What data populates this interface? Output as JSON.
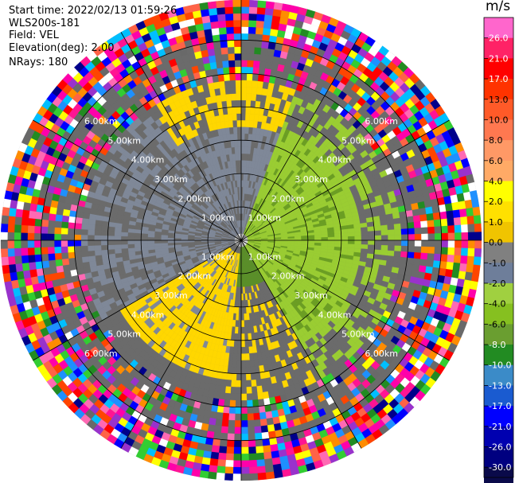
{
  "header": {
    "start_time": "Start time: 2022/02/13 01:59:26",
    "instrument": "WLS200s-181",
    "field": "Field: VEL",
    "elevation": "Elevation(deg): 2.00",
    "nrays": "NRays: 180"
  },
  "colorbar": {
    "unit": "m/s",
    "ticks": [
      "26.0",
      "21.0",
      "17.0",
      "13.0",
      "10.0",
      "8.0",
      "6.0",
      "4.0",
      "2.0",
      "1.0",
      "0.0",
      "-1.0",
      "-2.0",
      "-4.0",
      "-6.0",
      "-8.0",
      "-10.0",
      "-13.0",
      "-17.0",
      "-21.0",
      "-26.0",
      "-30.0"
    ],
    "colors": [
      "#ff66cc",
      "#ff2266",
      "#ff0000",
      "#ff3300",
      "#ff5a28",
      "#ff7850",
      "#ff9966",
      "#ffaa66",
      "#ffff00",
      "#ffe000",
      "#f0c400",
      "#808080",
      "#6e7e9a",
      "#a0d040",
      "#86c020",
      "#6a9e30",
      "#228b22",
      "#3b8bc8",
      "#1a5bd0",
      "#0000ff",
      "#0000b0",
      "#000080",
      "#0a0a4a"
    ]
  },
  "chart_data": {
    "type": "heatmap",
    "title": "",
    "field": "VEL",
    "units": "m/s",
    "elevation_deg": 2.0,
    "n_rays": 180,
    "range_rings_km": [
      1.0,
      2.0,
      3.0,
      4.0,
      5.0,
      6.0
    ],
    "range_labels": [
      "1.00km",
      "2.00km",
      "3.00km",
      "4.00km",
      "5.00km",
      "6.00km"
    ],
    "max_range_km": 7.2,
    "grid": true
  }
}
